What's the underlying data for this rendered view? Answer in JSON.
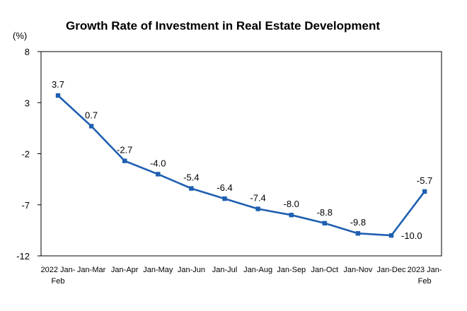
{
  "chart_data": {
    "type": "line",
    "title": "Growth Rate of Investment in Real Estate Development",
    "unit_label": "(%)",
    "xlabel": "",
    "ylabel": "",
    "ylim": [
      -12,
      8
    ],
    "yticks": [
      8,
      3,
      -2,
      -7,
      -12
    ],
    "grid": false,
    "legend": "none",
    "categories": [
      [
        "2022 Jan-",
        "Feb"
      ],
      [
        "Jan-Mar"
      ],
      [
        "Jan-Apr"
      ],
      [
        "Jan-May"
      ],
      [
        "Jan-Jun"
      ],
      [
        "Jan-Jul"
      ],
      [
        "Jan-Aug"
      ],
      [
        "Jan-Sep"
      ],
      [
        "Jan-Oct"
      ],
      [
        "Jan-Nov"
      ],
      [
        "Jan-Dec"
      ],
      [
        "2023 Jan-",
        "Feb"
      ]
    ],
    "series": [
      {
        "values": [
          3.7,
          0.7,
          -2.7,
          -4.0,
          -5.4,
          -6.4,
          -7.4,
          -8.0,
          -8.8,
          -9.8,
          -10.0,
          -5.7
        ],
        "labels": [
          "3.7",
          "0.7",
          "-2.7",
          "-4.0",
          "-5.4",
          "-6.4",
          "-7.4",
          "-8.0",
          "-8.8",
          "-9.8",
          "-10.0",
          "-5.7"
        ]
      }
    ],
    "colors": {
      "line": "#1f5fb0",
      "marker": "#1f5fb0",
      "axis": "#000000"
    }
  }
}
